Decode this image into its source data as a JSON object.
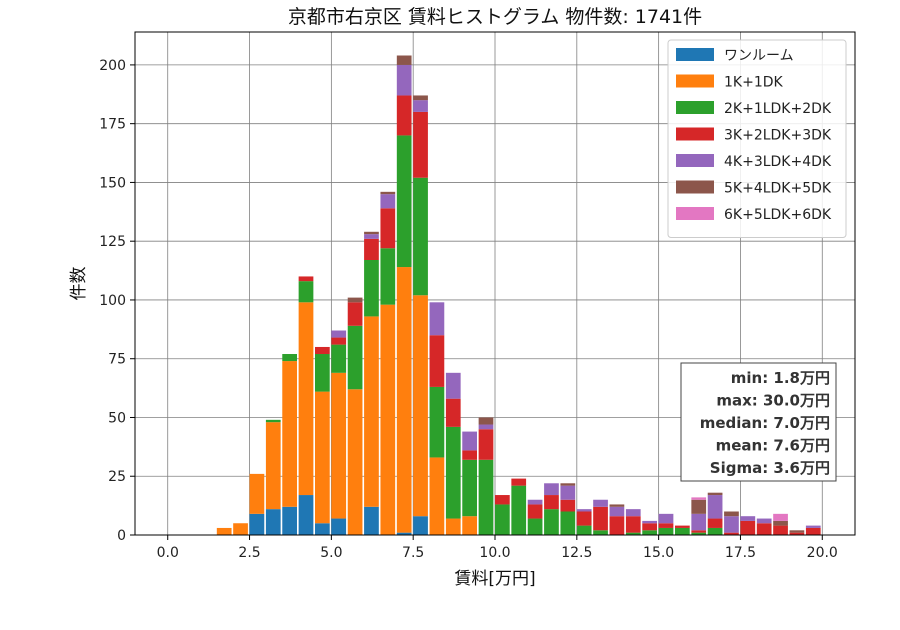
{
  "chart_data": {
    "type": "bar",
    "stacked": true,
    "title": "京都市右京区 賃料ヒストグラム 物件数: 1741件",
    "xlabel": "賃料[万円]",
    "ylabel": "件数",
    "xlim": [
      -1.0,
      21.0
    ],
    "ylim": [
      0,
      214
    ],
    "bin_width": 0.5,
    "xticks": [
      0.0,
      2.5,
      5.0,
      7.5,
      10.0,
      12.5,
      15.0,
      17.5,
      20.0
    ],
    "xtick_labels": [
      "0.0",
      "2.5",
      "5.0",
      "7.5",
      "10.0",
      "12.5",
      "15.0",
      "17.5",
      "20.0"
    ],
    "yticks": [
      0,
      25,
      50,
      75,
      100,
      125,
      150,
      175,
      200
    ],
    "ytick_labels": [
      "0",
      "25",
      "50",
      "75",
      "100",
      "125",
      "150",
      "175",
      "200"
    ],
    "grid": true,
    "legend_position": "top-right",
    "bin_starts": [
      1.5,
      2.0,
      2.5,
      3.0,
      3.5,
      4.0,
      4.5,
      5.0,
      5.5,
      6.0,
      6.5,
      7.0,
      7.5,
      8.0,
      8.5,
      9.0,
      9.5,
      10.0,
      10.5,
      11.0,
      11.5,
      12.0,
      12.5,
      13.0,
      13.5,
      14.0,
      14.5,
      15.0,
      15.5,
      16.0,
      16.5,
      17.0,
      17.5,
      18.0,
      18.5,
      19.0,
      19.5
    ],
    "series": [
      {
        "name": "ワンルーム",
        "color": "#1f77b4",
        "values": [
          0,
          0,
          9,
          11,
          12,
          17,
          5,
          7,
          0,
          12,
          0,
          1,
          8,
          0,
          0,
          0,
          0,
          0,
          0,
          0,
          0,
          0,
          0,
          0,
          0,
          0,
          0,
          0,
          0,
          0,
          0,
          0,
          0,
          0,
          0,
          0,
          0
        ]
      },
      {
        "name": "1K+1DK",
        "color": "#ff7f0e",
        "values": [
          3,
          5,
          17,
          37,
          62,
          82,
          56,
          62,
          62,
          81,
          98,
          113,
          94,
          33,
          7,
          8,
          0,
          0,
          0,
          0,
          0,
          0,
          0,
          0,
          0,
          0,
          0,
          0,
          0,
          0,
          0,
          0,
          0,
          0,
          0,
          0,
          0
        ]
      },
      {
        "name": "2K+1LDK+2DK",
        "color": "#2ca02c",
        "values": [
          0,
          0,
          0,
          1,
          3,
          9,
          16,
          12,
          27,
          24,
          24,
          56,
          50,
          30,
          39,
          24,
          32,
          13,
          21,
          7,
          11,
          10,
          4,
          2,
          0,
          1,
          2,
          3,
          3,
          1,
          3,
          0,
          0,
          0,
          0,
          0,
          0
        ]
      },
      {
        "name": "3K+2LDK+3DK",
        "color": "#d62728",
        "values": [
          0,
          0,
          0,
          0,
          0,
          2,
          3,
          3,
          10,
          9,
          17,
          17,
          28,
          22,
          12,
          4,
          13,
          4,
          3,
          6,
          6,
          5,
          6,
          10,
          8,
          7,
          3,
          2,
          1,
          1,
          4,
          1,
          6,
          5,
          4,
          1,
          3
        ]
      },
      {
        "name": "4K+3LDK+4DK",
        "color": "#9467bd",
        "values": [
          0,
          0,
          0,
          0,
          0,
          0,
          0,
          3,
          0,
          2,
          6,
          13,
          5,
          14,
          11,
          8,
          2,
          0,
          0,
          2,
          5,
          6,
          1,
          3,
          4,
          3,
          1,
          4,
          0,
          7,
          10,
          7,
          2,
          2,
          0,
          0,
          1
        ]
      },
      {
        "name": "5K+4LDK+5DK",
        "color": "#8c564b",
        "values": [
          0,
          0,
          0,
          0,
          0,
          0,
          0,
          0,
          2,
          1,
          1,
          4,
          2,
          0,
          0,
          0,
          3,
          0,
          0,
          0,
          0,
          1,
          0,
          0,
          1,
          0,
          0,
          0,
          0,
          6,
          1,
          2,
          0,
          0,
          2,
          1,
          0
        ]
      },
      {
        "name": "6K+5LDK+6DK",
        "color": "#e377c2",
        "values": [
          0,
          0,
          0,
          0,
          0,
          0,
          0,
          0,
          0,
          0,
          0,
          0,
          0,
          0,
          0,
          0,
          0,
          0,
          0,
          0,
          0,
          0,
          0,
          0,
          0,
          0,
          0,
          0,
          0,
          1,
          0,
          0,
          0,
          0,
          3,
          0,
          0
        ]
      }
    ],
    "stats": {
      "min": "min: 1.8万円",
      "max": "max: 30.0万円",
      "median": "median: 7.0万円",
      "mean": "mean: 7.6万円",
      "sigma": "Sigma: 3.6万円"
    }
  }
}
